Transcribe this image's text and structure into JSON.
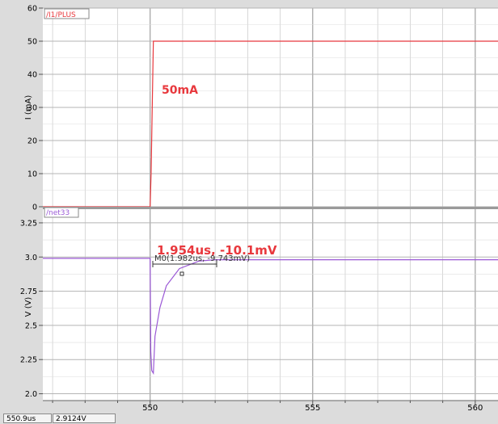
{
  "colors": {
    "current_trace": "#e8383d",
    "voltage_trace": "#9b59d6",
    "annotation": "#e8383d",
    "marker": "#333333",
    "plot_bg": "#ffffff",
    "grid": "#c8c8c8",
    "frame_bg": "#dcdcdc"
  },
  "panels": [
    {
      "id": "current",
      "signal_label": "/I1/PLUS",
      "ylabel": "I (mA)",
      "ytick_labels": [
        "60",
        "50",
        "40",
        "30",
        "20",
        "10",
        "0"
      ],
      "annotation": "50mA"
    },
    {
      "id": "voltage",
      "signal_label": "/net33",
      "ylabel": "V (V)",
      "ytick_labels": [
        "3.25",
        "3.0",
        "2.75",
        "2.5",
        "2.25",
        "2.0"
      ],
      "annotation": "1.954us, -10.1mV",
      "marker_label": "M0(1.982us, -9.743mV)"
    }
  ],
  "x_axis": {
    "tick_labels": [
      "550",
      "555",
      "560"
    ]
  },
  "status_bar": {
    "time_readout": "550.9us",
    "value_readout": "2.9124V"
  },
  "chart_data": [
    {
      "type": "line",
      "title": "/I1/PLUS",
      "xlabel": "",
      "ylabel": "I (mA)",
      "xlim": [
        546.7,
        560.7
      ],
      "ylim": [
        0,
        60
      ],
      "grid": true,
      "series": [
        {
          "name": "/I1/PLUS",
          "x": [
            546.7,
            550.0,
            550.03,
            550.1,
            560.7
          ],
          "y": [
            0,
            0,
            10,
            50,
            50
          ]
        }
      ],
      "annotations": [
        "50mA"
      ]
    },
    {
      "type": "line",
      "title": "/net33",
      "xlabel": "",
      "ylabel": "V (V)",
      "xlim": [
        546.7,
        560.7
      ],
      "ylim": [
        1.95,
        3.35
      ],
      "grid": true,
      "series": [
        {
          "name": "/net33",
          "x": [
            546.7,
            550.0,
            550.02,
            550.05,
            550.1,
            550.15,
            550.3,
            550.5,
            550.9,
            551.5,
            552.0,
            560.7
          ],
          "y": [
            2.99,
            2.99,
            2.31,
            2.17,
            2.15,
            2.42,
            2.63,
            2.79,
            2.915,
            2.97,
            2.98,
            2.98
          ]
        }
      ],
      "annotations": [
        "1.954us, -10.1mV",
        "M0(1.982us, -9.743mV)"
      ]
    }
  ]
}
